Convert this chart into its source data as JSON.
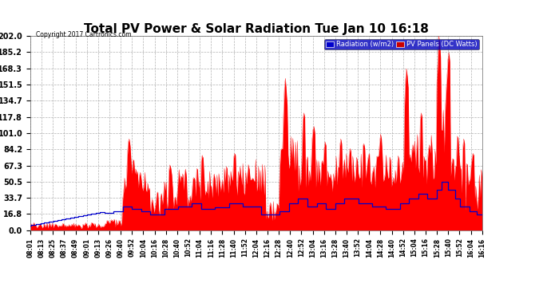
{
  "title": "Total PV Power & Solar Radiation Tue Jan 10 16:18",
  "copyright": "Copyright 2017 Cartronics.com",
  "legend_labels": [
    "Radiation (w/m2)",
    "PV Panels (DC Watts)"
  ],
  "legend_colors": [
    "#0000cc",
    "#cc0000"
  ],
  "background_color": "#ffffff",
  "plot_bg_color": "#ffffff",
  "grid_color": "#aaaaaa",
  "yticks": [
    0.0,
    16.8,
    33.7,
    50.5,
    67.3,
    84.2,
    101.0,
    117.8,
    134.7,
    151.5,
    168.3,
    185.2,
    202.0
  ],
  "ymax": 202.0,
  "ymin": 0.0,
  "red_fill_color": "#ff0000",
  "blue_line_color": "#0000cc",
  "time_labels": [
    "08:01",
    "08:13",
    "08:25",
    "08:37",
    "08:49",
    "09:01",
    "09:13",
    "09:26",
    "09:40",
    "09:52",
    "10:04",
    "10:16",
    "10:28",
    "10:40",
    "10:52",
    "11:04",
    "11:16",
    "11:28",
    "11:40",
    "11:52",
    "12:04",
    "12:16",
    "12:28",
    "12:40",
    "12:52",
    "13:04",
    "13:16",
    "13:28",
    "13:40",
    "13:52",
    "14:04",
    "14:28",
    "14:40",
    "14:52",
    "15:04",
    "15:16",
    "15:28",
    "15:40",
    "15:52",
    "16:04",
    "16:16"
  ],
  "title_fontsize": 11,
  "tick_fontsize": 5.5,
  "ytick_fontsize": 7
}
